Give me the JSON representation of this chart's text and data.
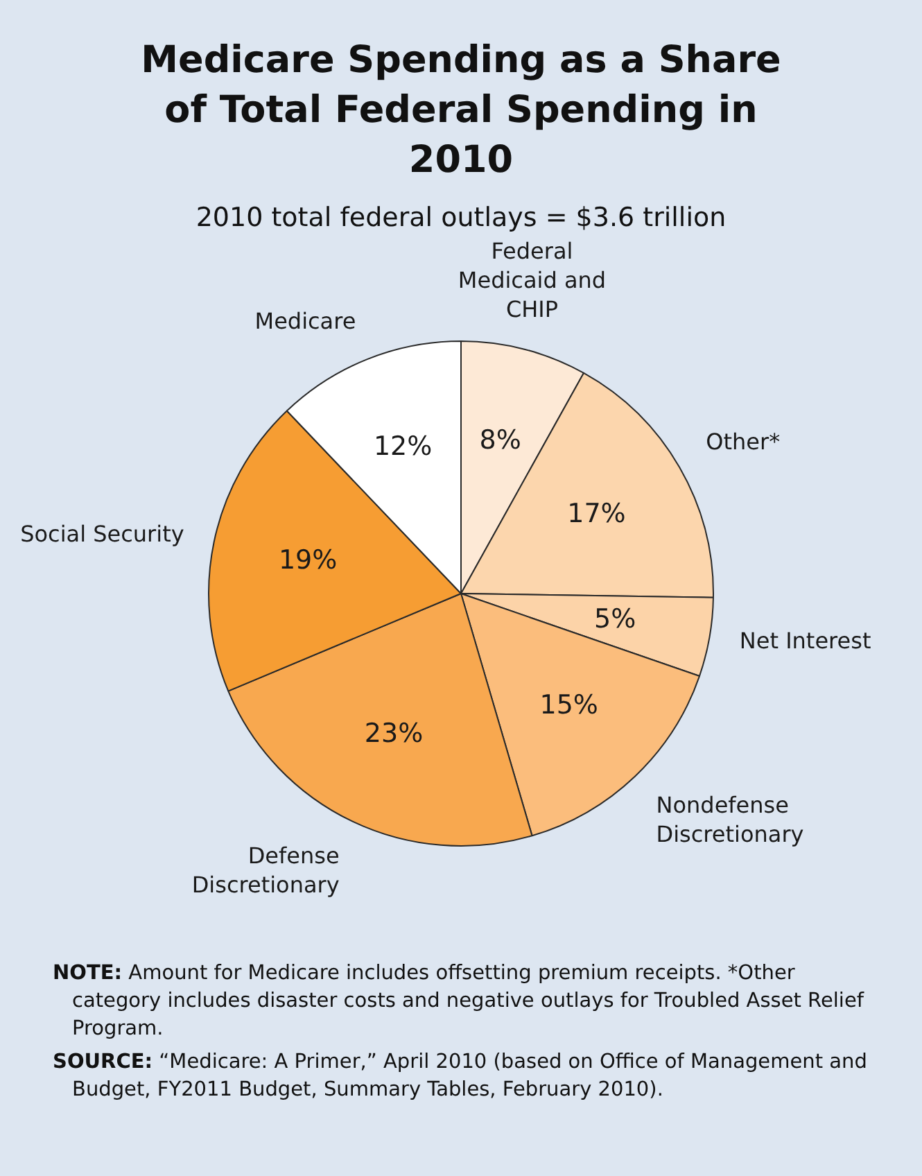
{
  "chart_data": {
    "type": "pie",
    "title": "Medicare Spending as a Share of Total Federal Spending in 2010",
    "subtitle": "2010 total federal outlays = $3.6 trillion",
    "categories": [
      "Federal Medicaid and CHIP",
      "Other*",
      "Net Interest",
      "Nondefense Discretionary",
      "Defense Discretionary",
      "Social Security",
      "Medicare"
    ],
    "values": [
      8,
      17,
      5,
      15,
      23,
      19,
      12
    ],
    "value_labels": [
      "8%",
      "17%",
      "5%",
      "15%",
      "23%",
      "19%",
      "12%"
    ],
    "colors": [
      "#fde9d6",
      "#fcd6ad",
      "#fcd3a8",
      "#fbbd7c",
      "#f8a84f",
      "#f69d33",
      "#ffffff"
    ],
    "annotations": [
      "NOTE: Amount for Medicare includes offsetting premium receipts. *Other category includes disaster costs and negative outlays for Troubled Asset Relief Program.",
      "SOURCE: “Medicare: A Primer,” April 2010 (based on Office of Management and Budget, FY2011 Budget, Summary Tables, February 2010)."
    ]
  }
}
